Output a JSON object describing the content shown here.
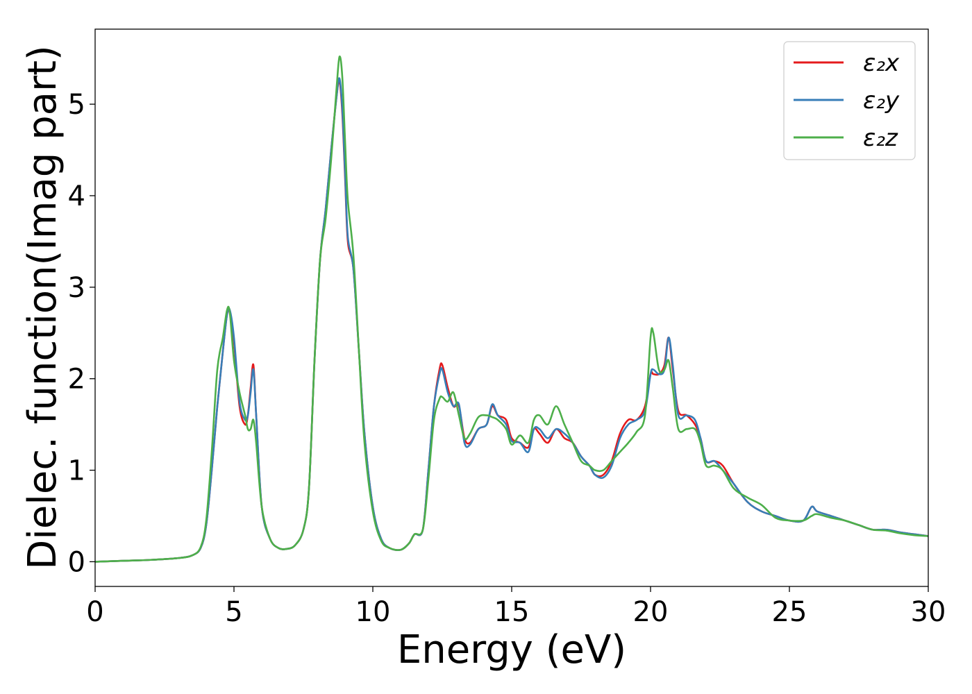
{
  "chart_data": {
    "type": "line",
    "title": "",
    "xlabel": "Energy (eV)",
    "ylabel": "Dielec. function(Imag part)",
    "xlim": [
      0,
      30
    ],
    "ylim": [
      -0.27,
      5.82
    ],
    "xticks": [
      0,
      5,
      10,
      15,
      20,
      25,
      30
    ],
    "xtick_labels": [
      "0",
      "5",
      "10",
      "15",
      "20",
      "25",
      "30"
    ],
    "yticks": [
      0,
      1,
      2,
      3,
      4,
      5
    ],
    "ytick_labels": [
      "0",
      "1",
      "2",
      "3",
      "4",
      "5"
    ],
    "grid": false,
    "legend_position": "top-right",
    "series": [
      {
        "name": "ε₂x",
        "color": "#e41a1c",
        "x": [
          0,
          1,
          2,
          3,
          3.5,
          3.8,
          4.0,
          4.2,
          4.4,
          4.6,
          4.75,
          4.85,
          5.0,
          5.2,
          5.4,
          5.5,
          5.6,
          5.7,
          5.8,
          6.0,
          6.3,
          6.6,
          6.9,
          7.2,
          7.5,
          7.7,
          7.9,
          8.1,
          8.3,
          8.5,
          8.7,
          8.8,
          8.9,
          9.0,
          9.1,
          9.3,
          9.5,
          9.7,
          10.0,
          10.3,
          10.6,
          11.0,
          11.3,
          11.5,
          11.8,
          12.0,
          12.2,
          12.4,
          12.5,
          12.7,
          12.9,
          13.1,
          13.3,
          13.5,
          13.8,
          14.1,
          14.3,
          14.5,
          14.8,
          15.0,
          15.3,
          15.6,
          15.8,
          16.0,
          16.3,
          16.6,
          16.9,
          17.2,
          17.5,
          17.8,
          18.0,
          18.3,
          18.6,
          18.9,
          19.2,
          19.5,
          19.8,
          20.0,
          20.1,
          20.3,
          20.5,
          20.65,
          20.8,
          21.0,
          21.3,
          21.6,
          21.8,
          22.0,
          22.3,
          22.6,
          23.0,
          23.5,
          24.0,
          24.5,
          25.0,
          25.5,
          25.8,
          26.0,
          26.5,
          27.0,
          27.5,
          28.0,
          28.5,
          29.0,
          29.5,
          30.0
        ],
        "y": [
          0.0,
          0.01,
          0.02,
          0.04,
          0.07,
          0.15,
          0.4,
          1.0,
          1.7,
          2.3,
          2.7,
          2.72,
          2.4,
          1.7,
          1.5,
          1.6,
          1.9,
          2.15,
          1.6,
          0.6,
          0.25,
          0.15,
          0.14,
          0.18,
          0.35,
          0.8,
          2.2,
          3.3,
          3.85,
          4.5,
          5.1,
          5.25,
          4.9,
          4.2,
          3.5,
          3.2,
          2.3,
          1.4,
          0.6,
          0.25,
          0.15,
          0.13,
          0.2,
          0.3,
          0.35,
          1.0,
          1.7,
          2.1,
          2.15,
          1.9,
          1.7,
          1.7,
          1.35,
          1.3,
          1.45,
          1.5,
          1.7,
          1.6,
          1.55,
          1.35,
          1.3,
          1.25,
          1.45,
          1.4,
          1.3,
          1.45,
          1.35,
          1.3,
          1.15,
          1.05,
          0.95,
          0.95,
          1.1,
          1.4,
          1.55,
          1.55,
          1.7,
          2.05,
          2.05,
          2.05,
          2.15,
          2.45,
          2.1,
          1.65,
          1.6,
          1.5,
          1.35,
          1.1,
          1.1,
          1.05,
          0.85,
          0.65,
          0.55,
          0.5,
          0.45,
          0.45,
          0.6,
          0.55,
          0.5,
          0.45,
          0.4,
          0.35,
          0.35,
          0.32,
          0.3,
          0.28
        ]
      },
      {
        "name": "ε₂y",
        "color": "#377eb8",
        "x": [
          0,
          1,
          2,
          3,
          3.5,
          3.8,
          4.0,
          4.2,
          4.4,
          4.6,
          4.75,
          4.85,
          5.0,
          5.2,
          5.4,
          5.5,
          5.6,
          5.7,
          5.8,
          6.0,
          6.3,
          6.6,
          6.9,
          7.2,
          7.5,
          7.7,
          7.9,
          8.1,
          8.3,
          8.5,
          8.7,
          8.8,
          8.9,
          9.0,
          9.1,
          9.3,
          9.5,
          9.7,
          10.0,
          10.3,
          10.6,
          11.0,
          11.3,
          11.5,
          11.8,
          12.0,
          12.2,
          12.4,
          12.5,
          12.7,
          12.9,
          13.1,
          13.3,
          13.5,
          13.8,
          14.1,
          14.3,
          14.5,
          14.8,
          15.0,
          15.3,
          15.6,
          15.8,
          16.0,
          16.3,
          16.6,
          16.9,
          17.2,
          17.5,
          17.8,
          18.0,
          18.3,
          18.6,
          18.9,
          19.2,
          19.5,
          19.8,
          20.0,
          20.1,
          20.3,
          20.5,
          20.65,
          20.8,
          21.0,
          21.3,
          21.6,
          21.8,
          22.0,
          22.3,
          22.6,
          23.0,
          23.5,
          24.0,
          24.5,
          25.0,
          25.5,
          25.8,
          26.0,
          26.5,
          27.0,
          27.5,
          28.0,
          28.5,
          29.0,
          29.5,
          30.0
        ],
        "y": [
          0.0,
          0.01,
          0.02,
          0.04,
          0.07,
          0.15,
          0.4,
          1.0,
          1.7,
          2.3,
          2.7,
          2.75,
          2.45,
          1.75,
          1.55,
          1.6,
          1.85,
          2.1,
          1.6,
          0.6,
          0.25,
          0.15,
          0.14,
          0.18,
          0.35,
          0.8,
          2.2,
          3.3,
          3.85,
          4.5,
          5.1,
          5.28,
          4.95,
          4.25,
          3.55,
          3.2,
          2.3,
          1.4,
          0.6,
          0.25,
          0.15,
          0.13,
          0.2,
          0.3,
          0.35,
          1.0,
          1.7,
          2.05,
          2.1,
          1.85,
          1.7,
          1.72,
          1.3,
          1.28,
          1.45,
          1.5,
          1.72,
          1.6,
          1.5,
          1.32,
          1.3,
          1.2,
          1.45,
          1.45,
          1.35,
          1.45,
          1.4,
          1.3,
          1.15,
          1.05,
          0.95,
          0.92,
          1.05,
          1.35,
          1.5,
          1.55,
          1.65,
          2.05,
          2.1,
          2.05,
          2.1,
          2.45,
          2.15,
          1.6,
          1.6,
          1.55,
          1.35,
          1.1,
          1.1,
          1.0,
          0.85,
          0.65,
          0.55,
          0.5,
          0.45,
          0.45,
          0.6,
          0.55,
          0.5,
          0.45,
          0.4,
          0.35,
          0.35,
          0.32,
          0.3,
          0.28
        ]
      },
      {
        "name": "ε₂z",
        "color": "#4daf4a",
        "x": [
          0,
          1,
          2,
          3,
          3.5,
          3.8,
          4.0,
          4.2,
          4.4,
          4.6,
          4.75,
          4.85,
          5.0,
          5.2,
          5.4,
          5.5,
          5.6,
          5.7,
          5.8,
          6.0,
          6.3,
          6.6,
          6.9,
          7.2,
          7.5,
          7.7,
          7.9,
          8.1,
          8.3,
          8.5,
          8.7,
          8.8,
          8.9,
          9.0,
          9.1,
          9.3,
          9.5,
          9.7,
          10.0,
          10.3,
          10.6,
          11.0,
          11.3,
          11.5,
          11.8,
          12.0,
          12.2,
          12.4,
          12.5,
          12.7,
          12.9,
          13.1,
          13.3,
          13.5,
          13.8,
          14.1,
          14.3,
          14.5,
          14.8,
          15.0,
          15.3,
          15.6,
          15.8,
          16.0,
          16.3,
          16.6,
          16.9,
          17.2,
          17.5,
          17.8,
          18.0,
          18.3,
          18.6,
          18.9,
          19.2,
          19.5,
          19.8,
          20.0,
          20.1,
          20.3,
          20.5,
          20.65,
          20.8,
          21.0,
          21.3,
          21.6,
          21.8,
          22.0,
          22.3,
          22.6,
          23.0,
          23.5,
          24.0,
          24.5,
          25.0,
          25.5,
          25.8,
          26.0,
          26.5,
          27.0,
          27.5,
          28.0,
          28.5,
          29.0,
          29.5,
          30.0
        ],
        "y": [
          0.0,
          0.01,
          0.02,
          0.04,
          0.07,
          0.16,
          0.45,
          1.2,
          2.1,
          2.45,
          2.75,
          2.72,
          2.2,
          1.85,
          1.6,
          1.45,
          1.45,
          1.55,
          1.3,
          0.6,
          0.25,
          0.15,
          0.14,
          0.18,
          0.35,
          0.8,
          2.2,
          3.3,
          3.75,
          4.4,
          5.2,
          5.52,
          5.3,
          4.6,
          3.95,
          3.35,
          2.3,
          1.3,
          0.55,
          0.23,
          0.15,
          0.13,
          0.2,
          0.3,
          0.35,
          0.9,
          1.55,
          1.78,
          1.8,
          1.75,
          1.85,
          1.6,
          1.35,
          1.4,
          1.58,
          1.6,
          1.58,
          1.55,
          1.45,
          1.28,
          1.38,
          1.3,
          1.55,
          1.6,
          1.5,
          1.7,
          1.5,
          1.3,
          1.1,
          1.05,
          1.0,
          1.0,
          1.1,
          1.2,
          1.3,
          1.42,
          1.6,
          2.45,
          2.5,
          2.1,
          2.1,
          2.2,
          1.9,
          1.45,
          1.45,
          1.45,
          1.3,
          1.05,
          1.05,
          1.0,
          0.8,
          0.7,
          0.62,
          0.48,
          0.45,
          0.45,
          0.5,
          0.52,
          0.48,
          0.45,
          0.4,
          0.35,
          0.34,
          0.31,
          0.29,
          0.28
        ]
      }
    ]
  }
}
